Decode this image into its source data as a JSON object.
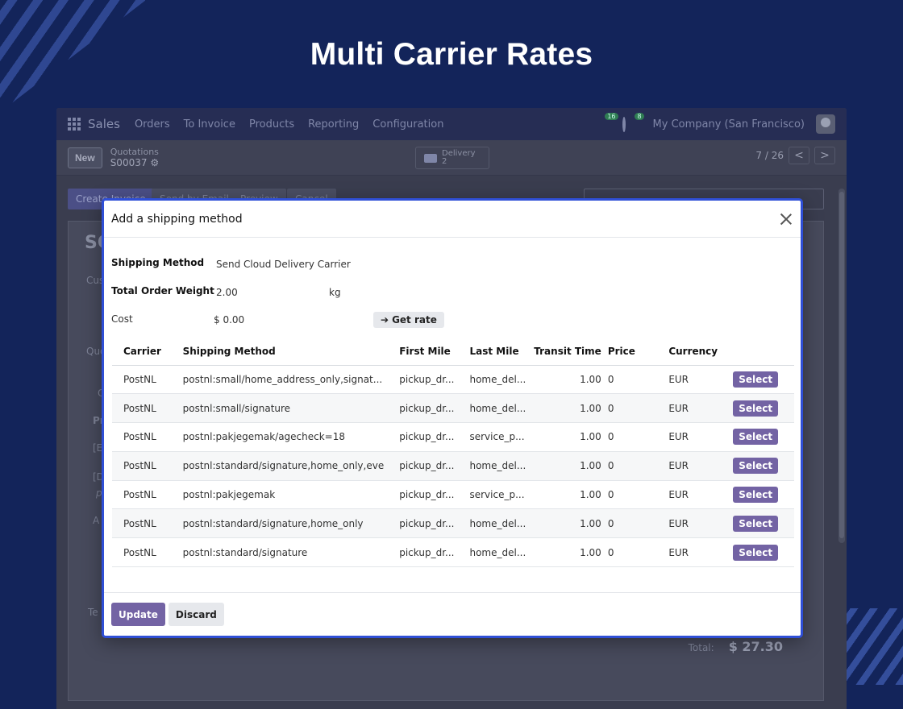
{
  "headline": "Multi Carrier Rates",
  "navbar": {
    "brand": "Sales",
    "menus": [
      "Orders",
      "To Invoice",
      "Products",
      "Reporting",
      "Configuration"
    ],
    "messages_count": "16",
    "activities_count": "8",
    "company": "My Company (San Francisco)"
  },
  "control": {
    "new_label": "New",
    "breadcrumb_parent": "Quotations",
    "record_name": "S00037",
    "delivery_label": "Delivery",
    "delivery_count": "2",
    "pager": "7 / 26",
    "prev": "<",
    "next": ">"
  },
  "actions": {
    "create_invoice": "Create Invoice",
    "send_email": "Send by Email",
    "preview": "Preview",
    "cancel": "Cancel"
  },
  "background": {
    "record_prefix": "SO",
    "customer_frag": "Cus",
    "quotation_frag": "Quo",
    "tab_frag": "O",
    "product_frag": "Pr",
    "line1_frag": "[E",
    "line2_frag": "[D",
    "line2_sub_frag": "p",
    "add_frag": "A",
    "terms_frag": "Te",
    "total_label": "Total:",
    "total_amount": "$ 27.30"
  },
  "modal": {
    "title": "Add a shipping method",
    "shipping_method_label": "Shipping Method",
    "shipping_method_value": "Send Cloud Delivery Carrier",
    "weight_label": "Total Order Weight",
    "weight_value": "2.00",
    "weight_unit": "kg",
    "cost_label": "Cost",
    "cost_value": "$ 0.00",
    "get_rate_label": "Get rate",
    "columns": {
      "carrier": "Carrier",
      "shipping_method": "Shipping Method",
      "first_mile": "First Mile",
      "last_mile": "Last Mile",
      "transit_time": "Transit Time",
      "price": "Price",
      "currency": "Currency"
    },
    "rows": [
      {
        "carrier": "PostNL",
        "method": "postnl:small/home_address_only,signat...",
        "first_mile": "pickup_dr...",
        "last_mile": "home_del...",
        "transit": "1.00",
        "price": "0",
        "currency": "EUR",
        "select": "Select"
      },
      {
        "carrier": "PostNL",
        "method": "postnl:small/signature",
        "first_mile": "pickup_dr...",
        "last_mile": "home_del...",
        "transit": "1.00",
        "price": "0",
        "currency": "EUR",
        "select": "Select"
      },
      {
        "carrier": "PostNL",
        "method": "postnl:pakjegemak/agecheck=18",
        "first_mile": "pickup_dr...",
        "last_mile": "service_p...",
        "transit": "1.00",
        "price": "0",
        "currency": "EUR",
        "select": "Select"
      },
      {
        "carrier": "PostNL",
        "method": "postnl:standard/signature,home_only,eve",
        "first_mile": "pickup_dr...",
        "last_mile": "home_del...",
        "transit": "1.00",
        "price": "0",
        "currency": "EUR",
        "select": "Select"
      },
      {
        "carrier": "PostNL",
        "method": "postnl:pakjegemak",
        "first_mile": "pickup_dr...",
        "last_mile": "service_p...",
        "transit": "1.00",
        "price": "0",
        "currency": "EUR",
        "select": "Select"
      },
      {
        "carrier": "PostNL",
        "method": "postnl:standard/signature,home_only",
        "first_mile": "pickup_dr...",
        "last_mile": "home_del...",
        "transit": "1.00",
        "price": "0",
        "currency": "EUR",
        "select": "Select"
      },
      {
        "carrier": "PostNL",
        "method": "postnl:standard/signature",
        "first_mile": "pickup_dr...",
        "last_mile": "home_del...",
        "transit": "1.00",
        "price": "0",
        "currency": "EUR",
        "select": "Select"
      }
    ],
    "update_label": "Update",
    "discard_label": "Discard"
  },
  "colors": {
    "page_bg": "#13245a",
    "accent": "#7363a4",
    "modal_border": "#2f4fd6"
  }
}
